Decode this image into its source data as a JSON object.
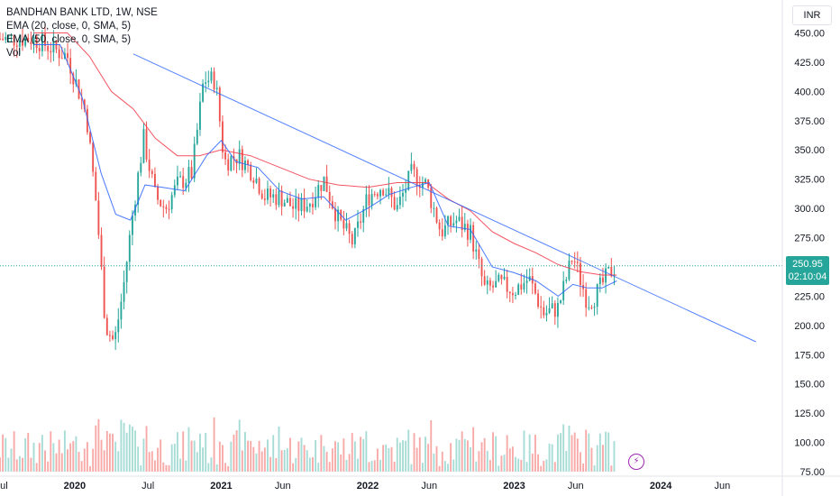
{
  "chart_data": {
    "type": "candlestick",
    "title": "BANDHAN BANK LTD, 1W, NSE",
    "currency": "INR",
    "indicators": [
      "EMA (20, close, 0, SMA, 5)",
      "EMA (50, close, 0, SMA, 5)",
      "Vol"
    ],
    "last_price": "250.95",
    "countdown": "02:10:04",
    "y_ticks": [
      "75.00",
      "100.00",
      "125.00",
      "150.00",
      "175.00",
      "200.00",
      "225.00",
      "250.00",
      "275.00",
      "300.00",
      "325.00",
      "350.00",
      "375.00",
      "400.00",
      "425.00",
      "450.00"
    ],
    "y_range": [
      75,
      455
    ],
    "x_labels": [
      {
        "label": "Jul",
        "year": 2019.5
      },
      {
        "label": "2020",
        "year": 2020.0
      },
      {
        "label": "Jul",
        "year": 2020.5
      },
      {
        "label": "2021",
        "year": 2021.0
      },
      {
        "label": "Jun",
        "year": 2021.42
      },
      {
        "label": "2022",
        "year": 2022.0
      },
      {
        "label": "Jun",
        "year": 2022.42
      },
      {
        "label": "2023",
        "year": 2023.0
      },
      {
        "label": "Jun",
        "year": 2023.42
      },
      {
        "label": "2024",
        "year": 2024.0
      },
      {
        "label": "Jun",
        "year": 2024.42
      }
    ],
    "x_range": [
      2019.49,
      2024.83
    ],
    "price_path": [
      [
        2019.72,
        445
      ],
      [
        2019.95,
        430
      ],
      [
        2020.08,
        380
      ],
      [
        2020.15,
        300
      ],
      [
        2020.21,
        200
      ],
      [
        2020.27,
        185
      ],
      [
        2020.33,
        230
      ],
      [
        2020.4,
        300
      ],
      [
        2020.47,
        360
      ],
      [
        2020.55,
        310
      ],
      [
        2020.62,
        300
      ],
      [
        2020.7,
        320
      ],
      [
        2020.8,
        330
      ],
      [
        2020.88,
        410
      ],
      [
        2020.96,
        410
      ],
      [
        2021.02,
        340
      ],
      [
        2021.12,
        345
      ],
      [
        2021.22,
        330
      ],
      [
        2021.3,
        310
      ],
      [
        2021.4,
        310
      ],
      [
        2021.5,
        300
      ],
      [
        2021.6,
        305
      ],
      [
        2021.7,
        325
      ],
      [
        2021.8,
        290
      ],
      [
        2021.9,
        270
      ],
      [
        2022.0,
        310
      ],
      [
        2022.1,
        320
      ],
      [
        2022.2,
        300
      ],
      [
        2022.3,
        330
      ],
      [
        2022.4,
        320
      ],
      [
        2022.5,
        280
      ],
      [
        2022.6,
        290
      ],
      [
        2022.7,
        280
      ],
      [
        2022.8,
        230
      ],
      [
        2022.9,
        235
      ],
      [
        2023.0,
        230
      ],
      [
        2023.1,
        240
      ],
      [
        2023.2,
        210
      ],
      [
        2023.3,
        215
      ],
      [
        2023.4,
        260
      ],
      [
        2023.5,
        220
      ],
      [
        2023.55,
        225
      ],
      [
        2023.65,
        245
      ],
      [
        2023.7,
        251
      ]
    ],
    "ema20_path": [
      [
        2019.72,
        440
      ],
      [
        2019.9,
        440
      ],
      [
        2020.05,
        395
      ],
      [
        2020.18,
        330
      ],
      [
        2020.28,
        295
      ],
      [
        2020.38,
        290
      ],
      [
        2020.48,
        320
      ],
      [
        2020.6,
        318
      ],
      [
        2020.75,
        315
      ],
      [
        2020.9,
        345
      ],
      [
        2021.0,
        358
      ],
      [
        2021.1,
        340
      ],
      [
        2021.25,
        335
      ],
      [
        2021.4,
        315
      ],
      [
        2021.55,
        308
      ],
      [
        2021.7,
        310
      ],
      [
        2021.85,
        290
      ],
      [
        2022.0,
        300
      ],
      [
        2022.15,
        312
      ],
      [
        2022.3,
        318
      ],
      [
        2022.42,
        322
      ],
      [
        2022.55,
        285
      ],
      [
        2022.7,
        282
      ],
      [
        2022.85,
        250
      ],
      [
        2023.0,
        245
      ],
      [
        2023.15,
        238
      ],
      [
        2023.3,
        225
      ],
      [
        2023.4,
        235
      ],
      [
        2023.5,
        232
      ],
      [
        2023.6,
        232
      ],
      [
        2023.7,
        238
      ]
    ],
    "ema50_path": [
      [
        2019.72,
        450
      ],
      [
        2019.95,
        450
      ],
      [
        2020.1,
        430
      ],
      [
        2020.25,
        400
      ],
      [
        2020.4,
        385
      ],
      [
        2020.55,
        360
      ],
      [
        2020.7,
        345
      ],
      [
        2020.85,
        345
      ],
      [
        2021.0,
        350
      ],
      [
        2021.2,
        345
      ],
      [
        2021.4,
        335
      ],
      [
        2021.6,
        325
      ],
      [
        2021.8,
        320
      ],
      [
        2022.0,
        318
      ],
      [
        2022.2,
        322
      ],
      [
        2022.4,
        322
      ],
      [
        2022.55,
        308
      ],
      [
        2022.7,
        298
      ],
      [
        2022.85,
        280
      ],
      [
        2023.0,
        270
      ],
      [
        2023.15,
        262
      ],
      [
        2023.3,
        252
      ],
      [
        2023.45,
        246
      ],
      [
        2023.6,
        243
      ],
      [
        2023.7,
        243
      ]
    ],
    "trendline": [
      [
        2020.4,
        432
      ],
      [
        2024.65,
        186
      ]
    ]
  }
}
